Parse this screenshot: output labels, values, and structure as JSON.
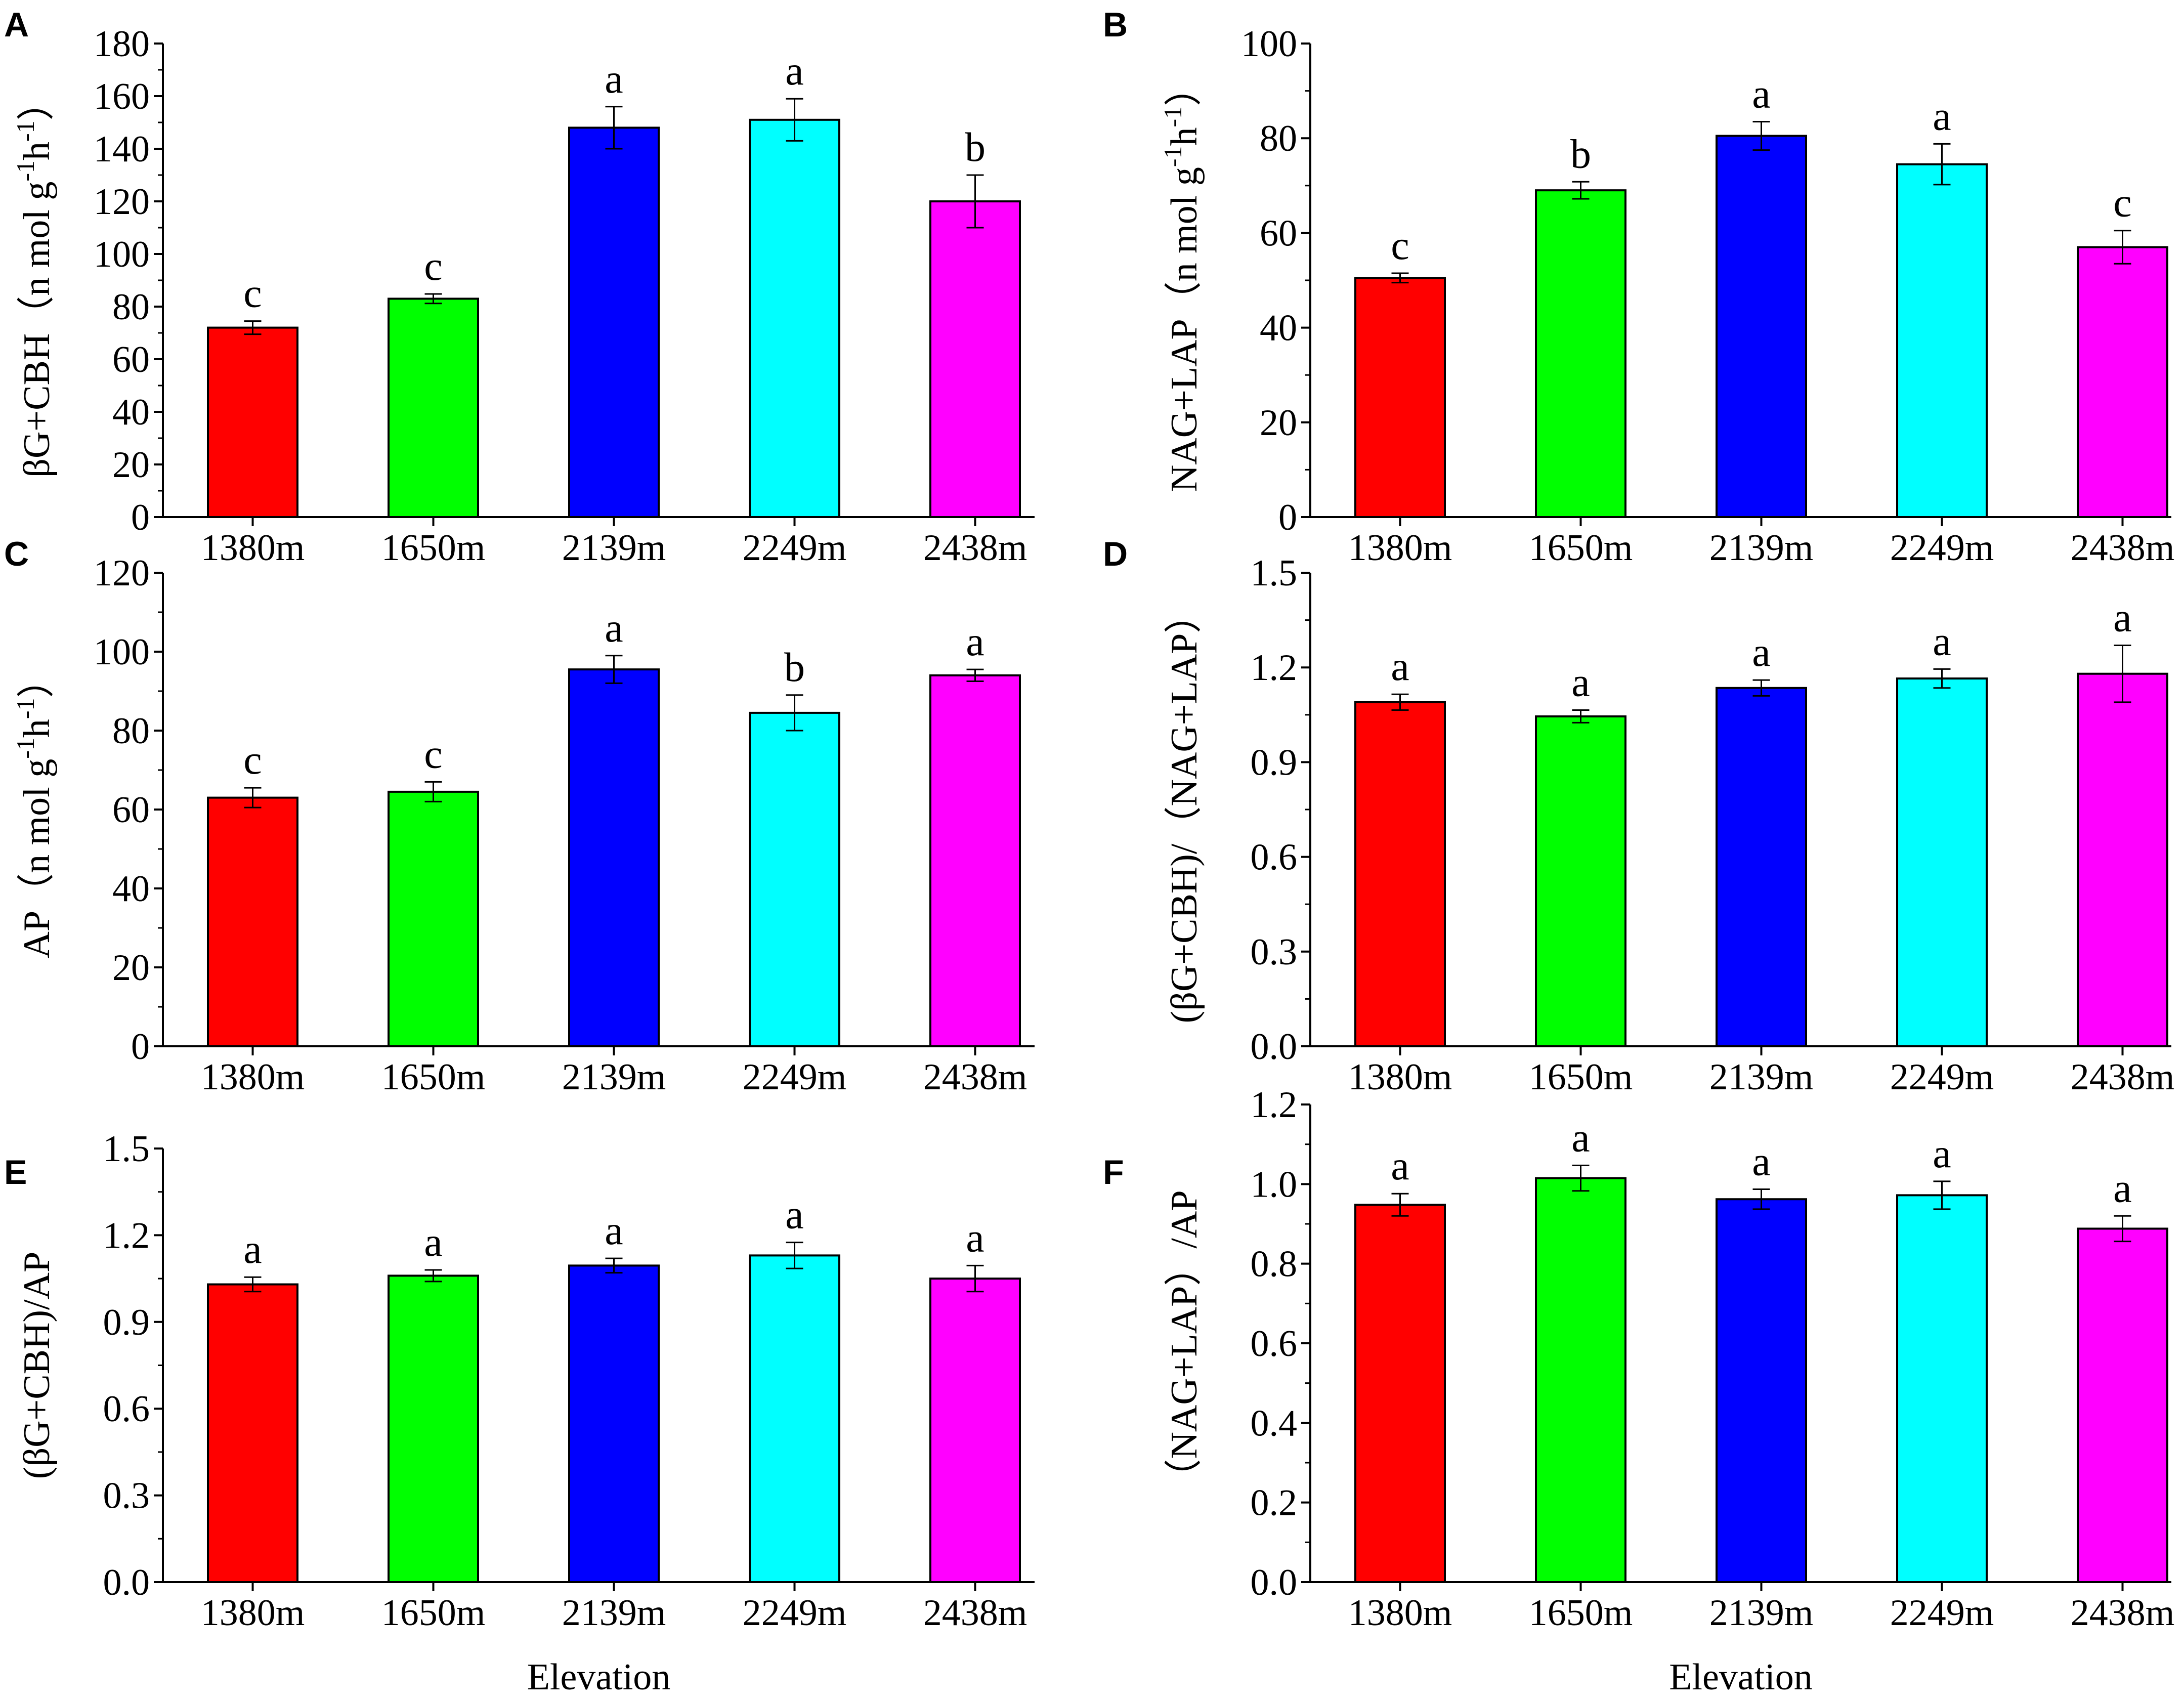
{
  "figure": {
    "xlabel": "Elevation",
    "colors": [
      "#ff0000",
      "#00ff00",
      "#0000ff",
      "#00ffff",
      "#ff00ff"
    ],
    "axis_color": "#000000"
  },
  "chart_data": [
    {
      "panel": "A",
      "type": "bar",
      "categories": [
        "1380m",
        "1650m",
        "2139m",
        "2249m",
        "2438m"
      ],
      "values": [
        72,
        83,
        148,
        151,
        120
      ],
      "errors": [
        2.5,
        1.8,
        8,
        8,
        10
      ],
      "significance": [
        "c",
        "c",
        "a",
        "a",
        "b"
      ],
      "ylabel": "βG+CBH（n mol g⁻¹h⁻¹）",
      "ylabel_parts": {
        "main": "βG+CBH（n mol g",
        "sup1": "-1",
        "mid": "h",
        "sup2": "-1",
        "end": "）"
      },
      "xlabel": "",
      "ylim": [
        0,
        180
      ],
      "yticks": [
        0,
        20,
        40,
        60,
        80,
        100,
        120,
        140,
        160,
        180
      ],
      "ytick_labels": [
        "0",
        "20",
        "40",
        "60",
        "80",
        "100",
        "120",
        "140",
        "160",
        "180"
      ]
    },
    {
      "panel": "B",
      "type": "bar",
      "categories": [
        "1380m",
        "1650m",
        "2139m",
        "2249m",
        "2438m"
      ],
      "values": [
        50.5,
        69,
        80.5,
        74.5,
        57
      ],
      "errors": [
        1,
        1.8,
        3,
        4.3,
        3.5
      ],
      "significance": [
        "c",
        "b",
        "a",
        "a",
        "c"
      ],
      "ylabel": "NAG+LAP（n mol g⁻¹h⁻¹）",
      "ylabel_parts": {
        "main": "NAG+LAP（n mol g",
        "sup1": "-1",
        "mid": "h",
        "sup2": "-1",
        "end": "）"
      },
      "xlabel": "",
      "ylim": [
        0,
        100
      ],
      "yticks": [
        0,
        20,
        40,
        60,
        80,
        100
      ],
      "ytick_labels": [
        "0",
        "20",
        "40",
        "60",
        "80",
        "100"
      ]
    },
    {
      "panel": "C",
      "type": "bar",
      "categories": [
        "1380m",
        "1650m",
        "2139m",
        "2249m",
        "2438m"
      ],
      "values": [
        63,
        64.5,
        95.5,
        84.5,
        94
      ],
      "errors": [
        2.5,
        2.5,
        3.5,
        4.5,
        1.5
      ],
      "significance": [
        "c",
        "c",
        "a",
        "b",
        "a"
      ],
      "ylabel": "AP（n mol g⁻¹h⁻¹）",
      "ylabel_parts": {
        "main": "AP（n mol g",
        "sup1": "-1",
        "mid": "h",
        "sup2": "-1",
        "end": "）"
      },
      "xlabel": "",
      "ylim": [
        0,
        120
      ],
      "yticks": [
        0,
        20,
        40,
        60,
        80,
        100,
        120
      ],
      "ytick_labels": [
        "0",
        "20",
        "40",
        "60",
        "80",
        "100",
        "120"
      ]
    },
    {
      "panel": "D",
      "type": "bar",
      "categories": [
        "1380m",
        "1650m",
        "2139m",
        "2249m",
        "2438m"
      ],
      "values": [
        1.09,
        1.045,
        1.135,
        1.165,
        1.18
      ],
      "errors": [
        0.025,
        0.02,
        0.025,
        0.03,
        0.09
      ],
      "significance": [
        "a",
        "a",
        "a",
        "a",
        "a"
      ],
      "ylabel": "(βG+CBH)/（NAG+LAP）",
      "xlabel": "",
      "ylim": [
        0,
        1.5
      ],
      "yticks": [
        0,
        0.3,
        0.6,
        0.9,
        1.2,
        1.5
      ],
      "ytick_labels": [
        "0.0",
        "0.3",
        "0.6",
        "0.9",
        "1.2",
        "1.5"
      ]
    },
    {
      "panel": "E",
      "type": "bar",
      "categories": [
        "1380m",
        "1650m",
        "2139m",
        "2249m",
        "2438m"
      ],
      "values": [
        1.03,
        1.06,
        1.095,
        1.13,
        1.05
      ],
      "errors": [
        0.025,
        0.02,
        0.025,
        0.045,
        0.045
      ],
      "significance": [
        "a",
        "a",
        "a",
        "a",
        "a"
      ],
      "ylabel": "(βG+CBH)/AP",
      "xlabel": "Elevation",
      "ylim": [
        0,
        1.5
      ],
      "yticks": [
        0,
        0.3,
        0.6,
        0.9,
        1.2,
        1.5
      ],
      "ytick_labels": [
        "0.0",
        "0.3",
        "0.6",
        "0.9",
        "1.2",
        "1.5"
      ]
    },
    {
      "panel": "F",
      "type": "bar",
      "categories": [
        "1380m",
        "1650m",
        "2139m",
        "2249m",
        "2438m"
      ],
      "values": [
        0.948,
        1.015,
        0.962,
        0.972,
        0.888
      ],
      "errors": [
        0.028,
        0.032,
        0.025,
        0.035,
        0.032
      ],
      "significance": [
        "a",
        "a",
        "a",
        "a",
        "a"
      ],
      "ylabel": "（NAG+LAP）/AP",
      "xlabel": "Elevation",
      "ylim": [
        0,
        1.2
      ],
      "yticks": [
        0,
        0.2,
        0.4,
        0.6,
        0.8,
        1.0,
        1.2
      ],
      "ytick_labels": [
        "0.0",
        "0.2",
        "0.4",
        "0.6",
        "0.8",
        "1.0",
        "1.2"
      ]
    }
  ]
}
